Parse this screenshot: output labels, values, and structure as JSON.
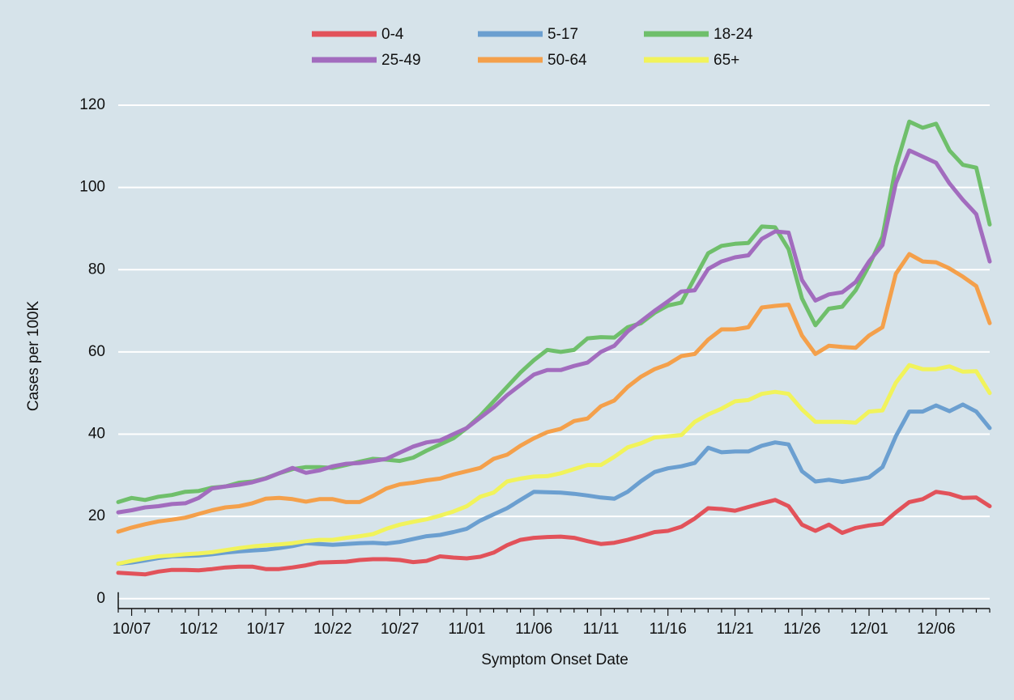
{
  "chart_data": {
    "type": "line",
    "y_label": "Cases per 100K",
    "x_label": "Symptom Onset Date",
    "categories": [
      null,
      "10/07",
      null,
      null,
      null,
      null,
      "10/12",
      null,
      null,
      null,
      null,
      "10/17",
      null,
      null,
      null,
      null,
      "10/22",
      null,
      null,
      null,
      null,
      "10/27",
      null,
      null,
      null,
      null,
      "11/01",
      null,
      null,
      null,
      null,
      "11/06",
      null,
      null,
      null,
      null,
      "11/11",
      null,
      null,
      null,
      null,
      "11/16",
      null,
      null,
      null,
      null,
      "11/21",
      null,
      null,
      null,
      null,
      "11/26",
      null,
      null,
      null,
      null,
      "12/01",
      null,
      null,
      null,
      null,
      "12/06",
      null,
      null,
      null,
      null
    ],
    "series": [
      {
        "name": "0-4",
        "color": "#e2525a",
        "values": [
          6.3,
          6.1,
          5.9,
          6.6,
          7,
          7,
          6.9,
          7.2,
          7.6,
          7.8,
          7.8,
          7.2,
          7.2,
          7.6,
          8.1,
          8.8,
          8.9,
          9,
          9.4,
          9.6,
          9.6,
          9.4,
          8.9,
          9.2,
          10.3,
          10,
          9.8,
          10.2,
          11.2,
          13,
          14.3,
          14.8,
          15,
          15.1,
          14.8,
          14,
          13.3,
          13.6,
          14.3,
          15.2,
          16.2,
          16.5,
          17.5,
          19.5,
          22,
          21.8,
          21.4,
          22.3,
          23.2,
          24,
          22.5,
          18,
          16.5,
          18,
          16,
          17.2,
          17.8,
          18.2,
          21,
          23.5,
          24.2,
          26,
          25.5,
          24.5,
          24.6,
          22.5
        ]
      },
      {
        "name": "5-17",
        "color": "#6b9fd0",
        "values": [
          8.5,
          8.8,
          9.3,
          9.9,
          10.3,
          10.4,
          10.5,
          10.8,
          11.2,
          11.5,
          11.7,
          11.9,
          12.3,
          12.8,
          13.5,
          13.3,
          13.1,
          13.3,
          13.5,
          13.6,
          13.4,
          13.8,
          14.5,
          15.2,
          15.5,
          16.2,
          17,
          19,
          20.5,
          22,
          24,
          26,
          25.9,
          25.8,
          25.5,
          25.1,
          24.6,
          24.3,
          26,
          28.6,
          30.8,
          31.7,
          32.2,
          33,
          36.7,
          35.6,
          35.8,
          35.8,
          37.2,
          38,
          37.5,
          31,
          28.5,
          28.9,
          28.4,
          28.9,
          29.5,
          32,
          39.5,
          45.5,
          45.5,
          47,
          45.6,
          47.2,
          45.5,
          41.5
        ]
      },
      {
        "name": "18-24",
        "color": "#6fbf6b",
        "values": [
          23.5,
          24.5,
          24,
          24.8,
          25.2,
          26,
          26.2,
          27,
          27.3,
          28.2,
          28.5,
          29.3,
          30.5,
          31.5,
          32,
          32,
          31.8,
          32.5,
          33.3,
          34,
          33.8,
          33.5,
          34.3,
          36,
          37.5,
          39,
          41.5,
          44.5,
          48,
          51.5,
          55,
          58,
          60.5,
          60,
          60.5,
          63.3,
          63.6,
          63.5,
          66,
          67,
          69.5,
          71.3,
          72,
          78,
          84,
          85.8,
          86.3,
          86.5,
          90.5,
          90.3,
          85,
          73,
          66.5,
          70.5,
          71,
          75,
          81,
          88,
          105,
          116,
          114.5,
          115.5,
          109,
          105.5,
          104.8,
          91
        ]
      },
      {
        "name": "25-49",
        "color": "#a26cbe",
        "values": [
          21,
          21.5,
          22.2,
          22.5,
          23,
          23.2,
          24.5,
          26.8,
          27.3,
          27.7,
          28.3,
          29.2,
          30.5,
          31.8,
          30.6,
          31.2,
          32.2,
          32.8,
          33,
          33.5,
          34,
          35.5,
          37,
          38,
          38.5,
          40,
          41.5,
          44,
          46.5,
          49.5,
          52,
          54.5,
          55.6,
          55.6,
          56.6,
          57.4,
          60,
          61.5,
          65,
          67.5,
          70,
          72.3,
          74.7,
          75,
          80.2,
          82,
          83,
          83.5,
          87.5,
          89.3,
          89,
          77.5,
          72.5,
          74,
          74.5,
          77,
          82,
          86,
          101,
          109,
          107.5,
          106,
          101,
          97,
          93.5,
          82
        ]
      },
      {
        "name": "50-64",
        "color": "#f4a04b",
        "values": [
          16.3,
          17.3,
          18.1,
          18.8,
          19.2,
          19.7,
          20.6,
          21.5,
          22.2,
          22.5,
          23.2,
          24.3,
          24.5,
          24.2,
          23.6,
          24.2,
          24.2,
          23.5,
          23.5,
          25,
          26.8,
          27.8,
          28.2,
          28.8,
          29.2,
          30.2,
          31,
          31.8,
          34,
          35,
          37.2,
          39,
          40.5,
          41.3,
          43.2,
          43.8,
          46.8,
          48.2,
          51.5,
          54,
          55.8,
          57,
          59,
          59.5,
          63,
          65.5,
          65.5,
          66,
          70.8,
          71.2,
          71.5,
          64,
          59.5,
          61.5,
          61.2,
          61,
          64,
          66,
          79,
          83.8,
          82,
          81.8,
          80.3,
          78.3,
          76,
          67
        ]
      },
      {
        "name": "65+",
        "color": "#f1f35b",
        "values": [
          8.5,
          9.2,
          9.8,
          10.3,
          10.5,
          10.8,
          11,
          11.3,
          11.8,
          12.3,
          12.7,
          13,
          13.2,
          13.5,
          14,
          14.3,
          14.3,
          14.8,
          15.2,
          15.7,
          17,
          18,
          18.7,
          19.3,
          20.2,
          21.2,
          22.5,
          24.8,
          25.8,
          28.5,
          29.2,
          29.7,
          29.8,
          30.5,
          31.5,
          32.5,
          32.5,
          34.5,
          36.8,
          37.8,
          39.2,
          39.5,
          39.8,
          43,
          44.8,
          46.2,
          48,
          48.3,
          49.8,
          50.3,
          49.8,
          46,
          43,
          43,
          43,
          42.8,
          45.5,
          45.8,
          52.5,
          56.8,
          55.8,
          55.8,
          56.5,
          55.2,
          55.3,
          50
        ]
      }
    ],
    "ylim": [
      -2.4,
      120
    ],
    "yticks": [
      0,
      20,
      40,
      60,
      80,
      100,
      120
    ],
    "grid": true,
    "legend": "top"
  }
}
